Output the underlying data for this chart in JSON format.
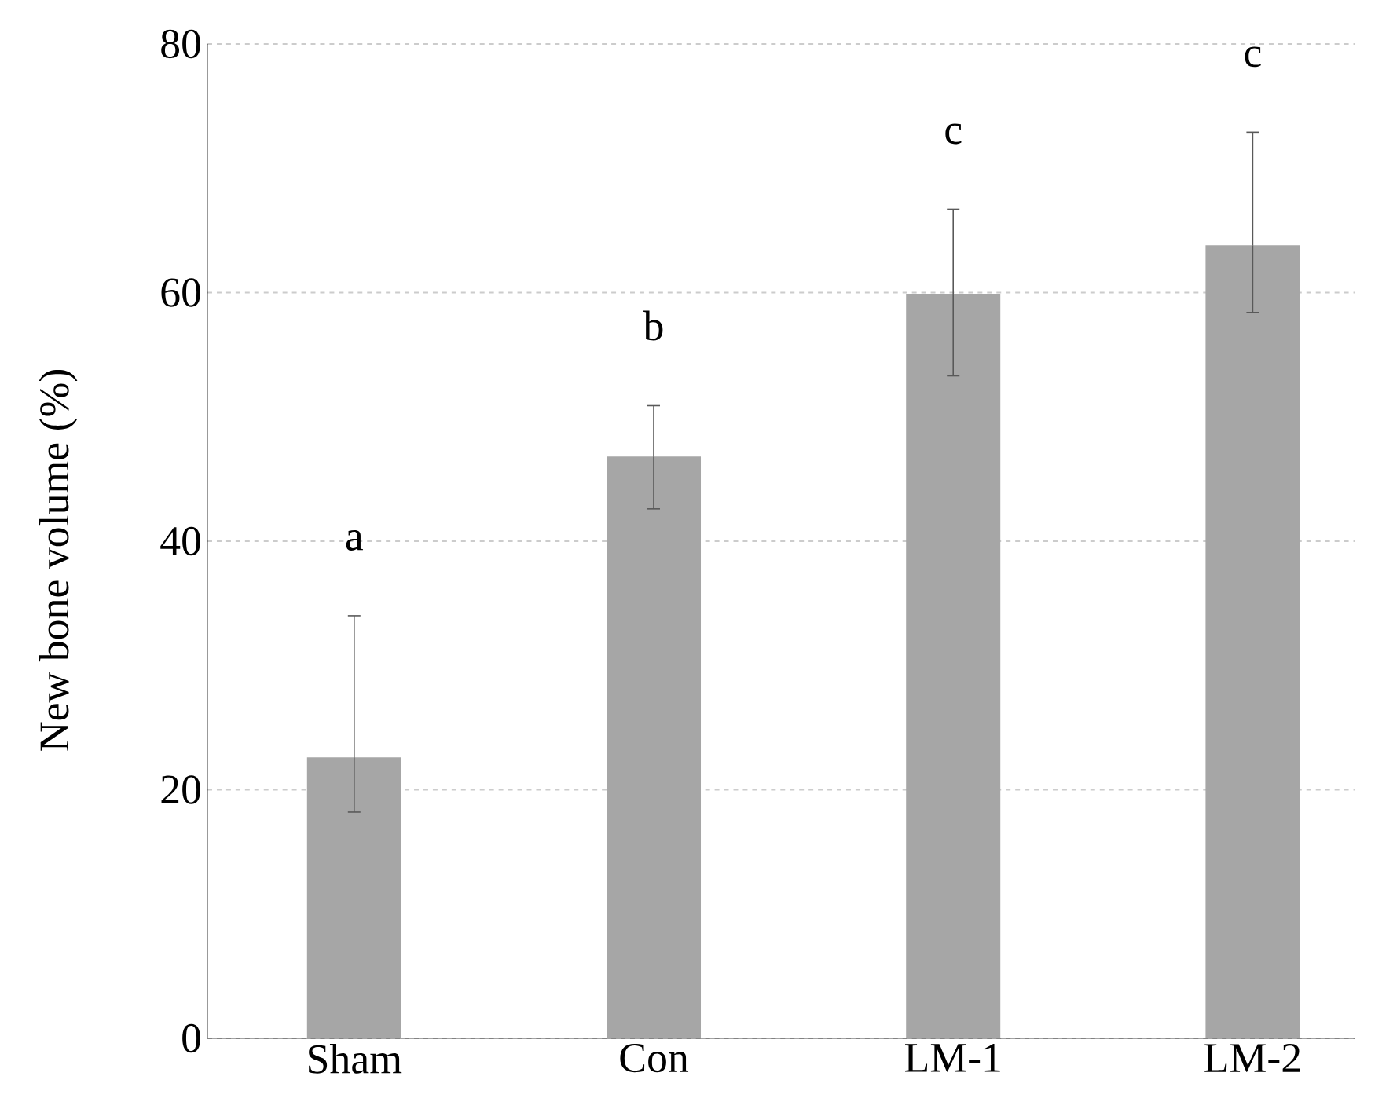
{
  "chart_data": {
    "type": "bar",
    "ylabel": "New bone volume (%)",
    "categories": [
      "Sham",
      "Con",
      "LM-1",
      "LM-2"
    ],
    "values": [
      22.6,
      46.8,
      59.9,
      63.8
    ],
    "errors": [
      [
        18.2,
        34.0
      ],
      [
        42.6,
        50.9
      ],
      [
        53.3,
        66.7
      ],
      [
        58.4,
        72.9
      ]
    ],
    "color": "#a6a6a6",
    "ylim": [
      0,
      80
    ],
    "yticks": [
      0,
      20,
      40,
      60,
      80
    ],
    "grid": "y",
    "annotations": [
      "a",
      "b",
      "c",
      "c"
    ]
  }
}
